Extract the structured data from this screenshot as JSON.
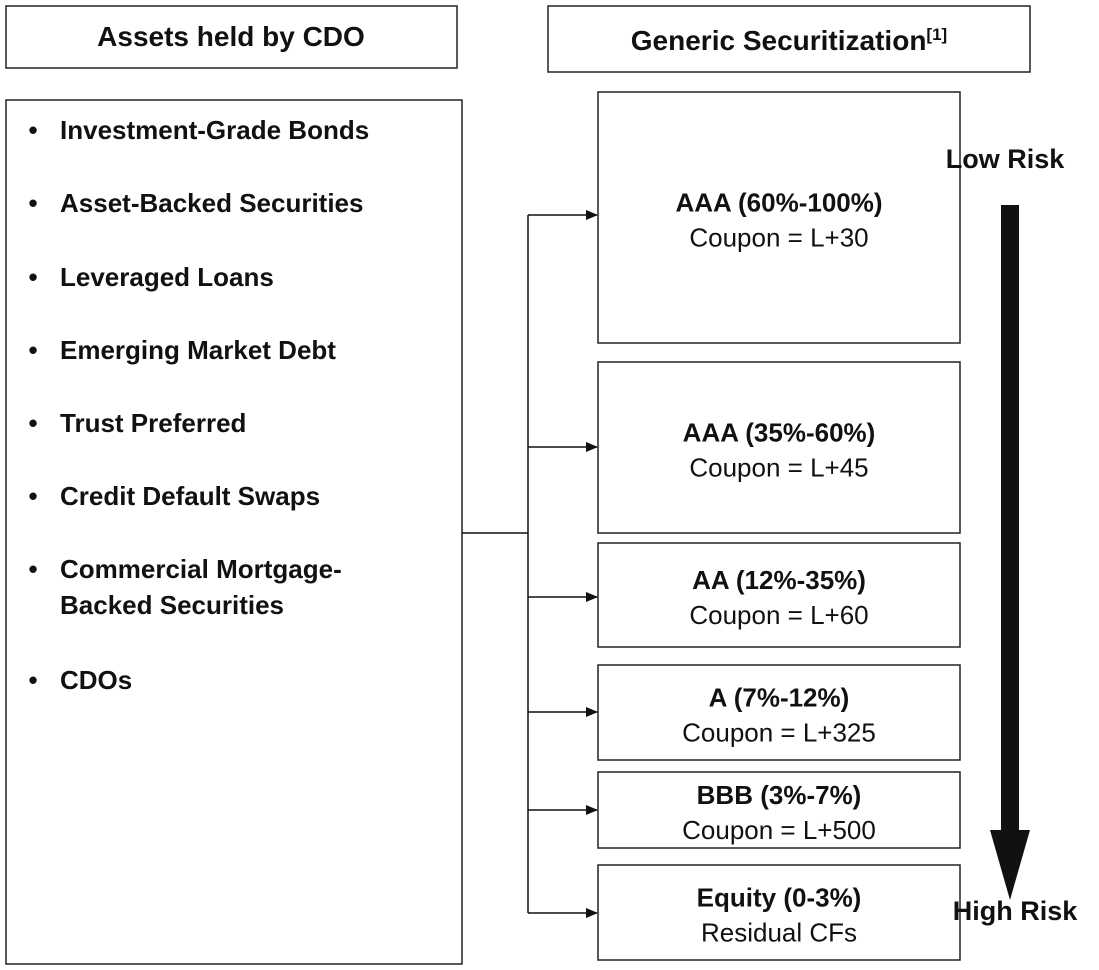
{
  "header": {
    "left_title": "Assets held by CDO",
    "right_title": "Generic Securitization",
    "right_title_note": "[1]"
  },
  "assets": [
    [
      "Investment-Grade Bonds"
    ],
    [
      "Asset-Backed Securities"
    ],
    [
      "Leveraged Loans"
    ],
    [
      "Emerging Market Debt"
    ],
    [
      "Trust Preferred"
    ],
    [
      "Credit Default Swaps"
    ],
    [
      "Commercial Mortgage-",
      "Backed Securities"
    ],
    [
      "CDOs"
    ]
  ],
  "tranches": [
    {
      "rating": "AAA (60%-100%)",
      "coupon": "Coupon = L+30"
    },
    {
      "rating": "AAA (35%-60%)",
      "coupon": "Coupon = L+45"
    },
    {
      "rating": "AA (12%-35%)",
      "coupon": "Coupon = L+60"
    },
    {
      "rating": "A (7%-12%)",
      "coupon": "Coupon = L+325"
    },
    {
      "rating": "BBB (3%-7%)",
      "coupon": "Coupon = L+500"
    },
    {
      "rating": "Equity (0-3%)",
      "coupon": "Residual CFs"
    }
  ],
  "risk": {
    "low": "Low Risk",
    "high": "High Risk"
  }
}
